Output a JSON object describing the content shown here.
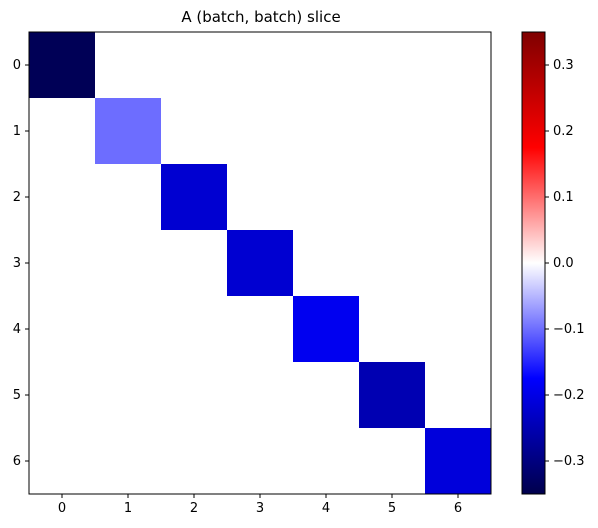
{
  "chart_data": {
    "type": "heatmap",
    "title": "A (batch, batch) slice",
    "xlabel": "",
    "ylabel": "",
    "x_ticks": [
      "0",
      "1",
      "2",
      "3",
      "4",
      "5",
      "6"
    ],
    "y_ticks": [
      "0",
      "1",
      "2",
      "3",
      "4",
      "5",
      "6"
    ],
    "colormap": "seismic",
    "vmin": -0.35,
    "vmax": 0.35,
    "colorbar_ticks": [
      "0.3",
      "0.2",
      "0.1",
      "0.0",
      "−0.1",
      "−0.2",
      "−0.3"
    ],
    "colorbar_tick_values": [
      0.3,
      0.2,
      0.1,
      0.0,
      -0.1,
      -0.2,
      -0.3
    ],
    "values": [
      [
        -0.34,
        0,
        0,
        0,
        0,
        0,
        0
      ],
      [
        0,
        -0.1,
        0,
        0,
        0,
        0,
        0
      ],
      [
        0,
        0,
        -0.22,
        0,
        0,
        0,
        0
      ],
      [
        0,
        0,
        0,
        -0.22,
        0,
        0,
        0
      ],
      [
        0,
        0,
        0,
        0,
        -0.19,
        0,
        0
      ],
      [
        0,
        0,
        0,
        0,
        0,
        -0.25,
        0
      ],
      [
        0,
        0,
        0,
        0,
        0,
        0,
        -0.21
      ]
    ]
  }
}
